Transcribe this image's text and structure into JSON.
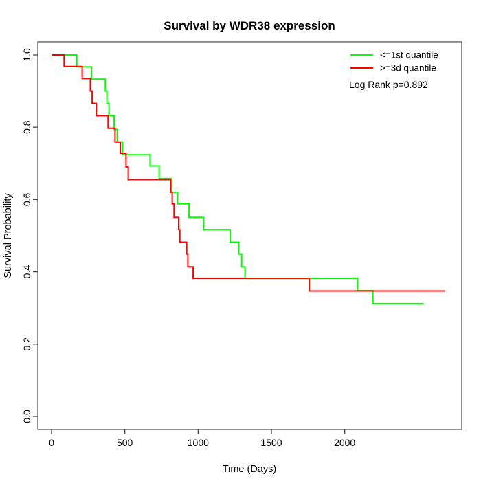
{
  "title": "Survival by WDR38 expression",
  "x_axis": {
    "label": "Time (Days)",
    "tick_labels": [
      "0",
      "500",
      "1000",
      "1500",
      "2000"
    ]
  },
  "y_axis": {
    "label": "Survival Probability",
    "tick_labels": [
      "0.0",
      "0.2",
      "0.4",
      "0.6",
      "0.8",
      "1.0"
    ]
  },
  "legend": {
    "items": [
      {
        "label": "<=1st quantile",
        "color": "#00ff00"
      },
      {
        "label": ">=3d quantile",
        "color": "#ff0000"
      }
    ],
    "note": "Log Rank p=0.892"
  },
  "chart_data": {
    "type": "line",
    "style": "kaplan-meier-step",
    "title": "Survival by WDR38 expression",
    "xlabel": "Time (Days)",
    "ylabel": "Survival Probability",
    "xlim": [
      0,
      2700
    ],
    "ylim": [
      0.0,
      1.0
    ],
    "x_ticks": [
      0,
      500,
      1000,
      1500,
      2000
    ],
    "y_ticks": [
      0.0,
      0.2,
      0.4,
      0.6,
      0.8,
      1.0
    ],
    "grid": false,
    "legend_position": "top-right",
    "annotation": "Log Rank p=0.892",
    "series": [
      {
        "name": "<=1st quantile",
        "color": "#00ff00",
        "end_day": 2539,
        "points": [
          [
            0,
            1.0
          ],
          [
            172,
            0.967
          ],
          [
            273,
            0.933
          ],
          [
            367,
            0.9
          ],
          [
            378,
            0.866
          ],
          [
            392,
            0.832
          ],
          [
            427,
            0.794
          ],
          [
            448,
            0.759
          ],
          [
            484,
            0.724
          ],
          [
            672,
            0.693
          ],
          [
            734,
            0.658
          ],
          [
            817,
            0.62
          ],
          [
            858,
            0.588
          ],
          [
            938,
            0.551
          ],
          [
            1036,
            0.517
          ],
          [
            1219,
            0.482
          ],
          [
            1278,
            0.449
          ],
          [
            1297,
            0.414
          ],
          [
            1320,
            0.382
          ],
          [
            2086,
            0.348
          ],
          [
            2192,
            0.312
          ]
        ]
      },
      {
        "name": ">=3d quantile",
        "color": "#ff0000",
        "end_day": 2687,
        "points": [
          [
            0,
            1.0
          ],
          [
            86,
            0.968
          ],
          [
            209,
            0.935
          ],
          [
            265,
            0.9
          ],
          [
            277,
            0.866
          ],
          [
            305,
            0.832
          ],
          [
            386,
            0.797
          ],
          [
            433,
            0.759
          ],
          [
            469,
            0.728
          ],
          [
            508,
            0.69
          ],
          [
            523,
            0.655
          ],
          [
            812,
            0.62
          ],
          [
            823,
            0.588
          ],
          [
            836,
            0.551
          ],
          [
            867,
            0.517
          ],
          [
            875,
            0.482
          ],
          [
            922,
            0.449
          ],
          [
            930,
            0.414
          ],
          [
            966,
            0.382
          ],
          [
            1758,
            0.347
          ]
        ]
      }
    ]
  }
}
